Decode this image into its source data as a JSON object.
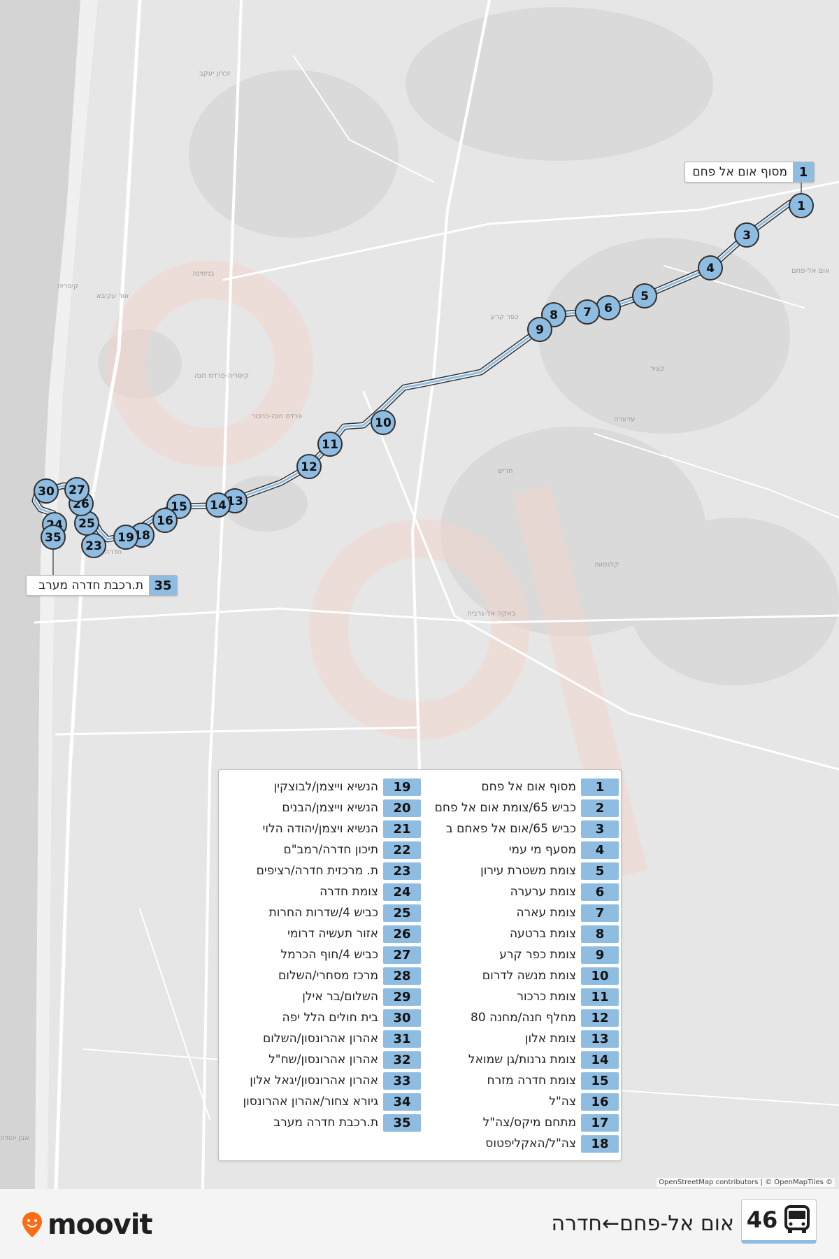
{
  "place_labels": [
    "זכרון יעקב",
    "בנימינה",
    "קיסריה",
    "אור עקיבא",
    "קיסריה-פרדס חנה",
    "פרדס חנה-כרכור",
    "כפר קרע",
    "אום אל-פחם",
    "קציר",
    "ערערה",
    "חריש",
    "באקה אל-גרביה",
    "קלנסווה",
    "חדרה",
    "אבן יהודה"
  ],
  "callouts": {
    "start": {
      "num": "1",
      "name": "מסוף אום אל פחם"
    },
    "end": {
      "num": "35",
      "name": "ת.רכבת חדרה מערב"
    }
  },
  "map_markers": [
    {
      "num": "1"
    },
    {
      "num": "3"
    },
    {
      "num": "4"
    },
    {
      "num": "5"
    },
    {
      "num": "6"
    },
    {
      "num": "7"
    },
    {
      "num": "8"
    },
    {
      "num": "9"
    },
    {
      "num": "10"
    },
    {
      "num": "11"
    },
    {
      "num": "12"
    },
    {
      "num": "13"
    },
    {
      "num": "14"
    },
    {
      "num": "15"
    },
    {
      "num": "16"
    },
    {
      "num": "18"
    },
    {
      "num": "19"
    },
    {
      "num": "23"
    },
    {
      "num": "24"
    },
    {
      "num": "25"
    },
    {
      "num": "26"
    },
    {
      "num": "27"
    },
    {
      "num": "30"
    },
    {
      "num": "35"
    }
  ],
  "stops": [
    {
      "num": "1",
      "name": "מסוף אום אל פחם"
    },
    {
      "num": "2",
      "name": "כביש 65/צומת אום אל פחם"
    },
    {
      "num": "3",
      "name": "כביש 65/אום אל פאחם ב"
    },
    {
      "num": "4",
      "name": "מסעף מי עמי"
    },
    {
      "num": "5",
      "name": "צומת משטרת עירון"
    },
    {
      "num": "6",
      "name": "צומת ערערה"
    },
    {
      "num": "7",
      "name": "צומת עארה"
    },
    {
      "num": "8",
      "name": "צומת ברטעה"
    },
    {
      "num": "9",
      "name": "צומת כפר קרע"
    },
    {
      "num": "10",
      "name": "צומת מנשה לדרום"
    },
    {
      "num": "11",
      "name": "צומת כרכור"
    },
    {
      "num": "12",
      "name": "מחלף חנה/מחנה 80"
    },
    {
      "num": "13",
      "name": "צומת אלון"
    },
    {
      "num": "14",
      "name": "צומת גרנות/גן שמואל"
    },
    {
      "num": "15",
      "name": "צומת חדרה מזרח"
    },
    {
      "num": "16",
      "name": "צה\"ל"
    },
    {
      "num": "17",
      "name": "מתחם מיקס/צה\"ל"
    },
    {
      "num": "18",
      "name": "צה\"ל/האקליפטוס"
    },
    {
      "num": "19",
      "name": "הנשיא וייצמן/לבוצקין"
    },
    {
      "num": "20",
      "name": "הנשיא וייצמן/הבנים"
    },
    {
      "num": "21",
      "name": "הנשיא ויצמן/יהודה הלוי"
    },
    {
      "num": "22",
      "name": "תיכון חדרה/רמב\"ם"
    },
    {
      "num": "23",
      "name": "ת. מרכזית חדרה/רציפים"
    },
    {
      "num": "24",
      "name": "צומת חדרה"
    },
    {
      "num": "25",
      "name": "כביש 4/שדרות החרות"
    },
    {
      "num": "26",
      "name": "אזור תעשיה דרומי"
    },
    {
      "num": "27",
      "name": "כביש 4/חוף הכרמל"
    },
    {
      "num": "28",
      "name": "מרכז מסחרי/השלום"
    },
    {
      "num": "29",
      "name": "השלום/בר אילן"
    },
    {
      "num": "30",
      "name": "בית חולים הלל יפה"
    },
    {
      "num": "31",
      "name": "אהרון אהרונסון/השלום"
    },
    {
      "num": "32",
      "name": "אהרון אהרונסון/שח\"ל"
    },
    {
      "num": "33",
      "name": "אהרון אהרונסון/יגאל אלון"
    },
    {
      "num": "34",
      "name": "גיורא צחור/אהרון אהרונסון"
    },
    {
      "num": "35",
      "name": "ת.רכבת חדרה מערב"
    }
  ],
  "attribution": "OpenStreetMap contributors | © OpenMapTiles ©",
  "footer": {
    "brand": "moovit",
    "line_number": "46",
    "route_name": "אום אל-פחם←חדרה",
    "bus_icon": "bus-icon"
  },
  "colors": {
    "route": "#8fbde2",
    "marker": "#8fbde2",
    "brand_pin": "#ff6a13"
  }
}
